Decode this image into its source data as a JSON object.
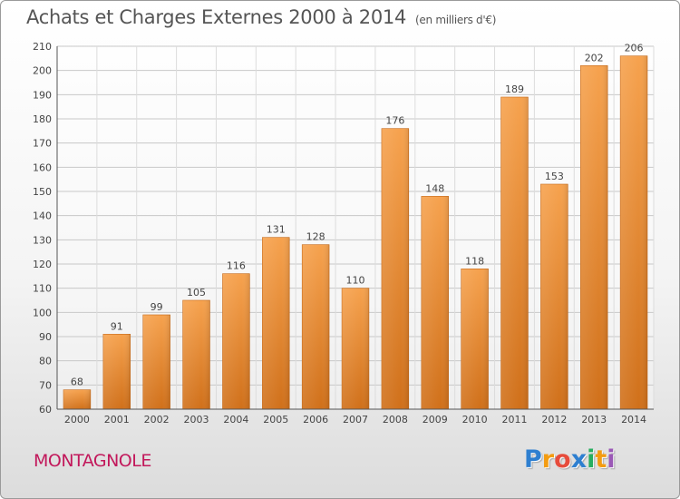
{
  "header": {
    "title": "Achats et Charges Externes 2000 à 2014",
    "subtitle": "(en milliers d'€)"
  },
  "footer": {
    "place": "MONTAGNOLE",
    "logo_text": "Proxiti",
    "logo_letters": [
      {
        "ch": "P",
        "color": "#2e7fd0"
      },
      {
        "ch": "r",
        "color": "#f39c12"
      },
      {
        "ch": "o",
        "color": "#e74c3c"
      },
      {
        "ch": "x",
        "color": "#2e7fd0"
      },
      {
        "ch": "i",
        "color": "#27ae60"
      },
      {
        "ch": "t",
        "color": "#f39c12"
      },
      {
        "ch": "i",
        "color": "#9b59b6"
      }
    ]
  },
  "chart_data": {
    "type": "bar",
    "categories": [
      "2000",
      "2001",
      "2002",
      "2003",
      "2004",
      "2005",
      "2006",
      "2007",
      "2008",
      "2009",
      "2010",
      "2011",
      "2012",
      "2013",
      "2014"
    ],
    "values": [
      68,
      91,
      99,
      105,
      116,
      131,
      128,
      110,
      176,
      148,
      118,
      189,
      153,
      202,
      206
    ],
    "title": "Achats et Charges Externes 2000 à 2014",
    "ylim": [
      60,
      210
    ],
    "yticks": [
      60,
      70,
      80,
      90,
      100,
      110,
      120,
      130,
      140,
      150,
      160,
      170,
      180,
      190,
      200,
      210
    ],
    "grid": true,
    "bar_color": "#f0963a",
    "bar_color_dark": "#cf6d12"
  }
}
